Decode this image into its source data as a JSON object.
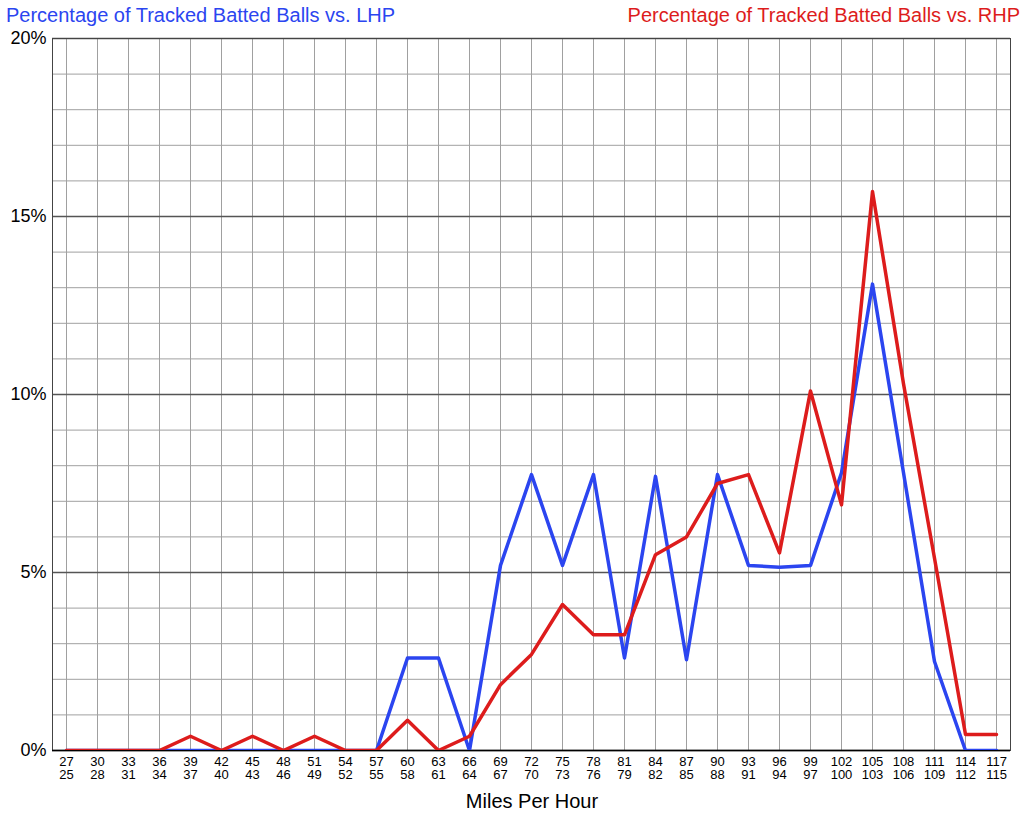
{
  "chart_data": {
    "type": "line",
    "x_label": "Miles Per Hour",
    "categories": [
      "27\n25",
      "30\n28",
      "33\n31",
      "36\n34",
      "39\n37",
      "42\n40",
      "45\n43",
      "48\n46",
      "51\n49",
      "54\n52",
      "57\n55",
      "60\n58",
      "63\n61",
      "66\n64",
      "69\n67",
      "72\n70",
      "75\n73",
      "78\n76",
      "81\n79",
      "84\n82",
      "87\n85",
      "90\n88",
      "93\n91",
      "96\n94",
      "99\n97",
      "102\n100",
      "105\n103",
      "108\n106",
      "111\n109",
      "114\n112",
      "117\n115"
    ],
    "series": [
      {
        "name": "Percentage of Tracked Batted Balls vs. LHP",
        "color": "#2b45f0",
        "values": [
          0,
          0,
          0,
          0,
          0,
          0,
          0,
          0,
          0,
          0,
          0,
          2.6,
          2.6,
          0,
          5.2,
          7.75,
          5.2,
          7.75,
          2.6,
          7.7,
          2.55,
          7.75,
          5.2,
          5.15,
          5.2,
          7.8,
          13.1,
          7.8,
          2.5,
          0,
          0
        ]
      },
      {
        "name": "Percentage of Tracked Batted Balls vs. RHP",
        "color": "#dd1c1c",
        "values": [
          0,
          0,
          0,
          0,
          0.4,
          0,
          0.4,
          0,
          0.4,
          0,
          0,
          0.85,
          0,
          0.4,
          1.85,
          2.7,
          4.1,
          3.25,
          3.25,
          5.5,
          6.0,
          7.5,
          7.75,
          5.55,
          10.1,
          6.9,
          15.7,
          10.3,
          5.4,
          0.45,
          0.45
        ]
      }
    ],
    "ylim": [
      0,
      20
    ],
    "yticks": [
      {
        "value": 0,
        "label": "0%"
      },
      {
        "value": 5,
        "label": "5%"
      },
      {
        "value": 10,
        "label": "10%"
      },
      {
        "value": 15,
        "label": "15%"
      },
      {
        "value": 20,
        "label": "20%"
      }
    ],
    "grid": true,
    "legend": "top"
  }
}
